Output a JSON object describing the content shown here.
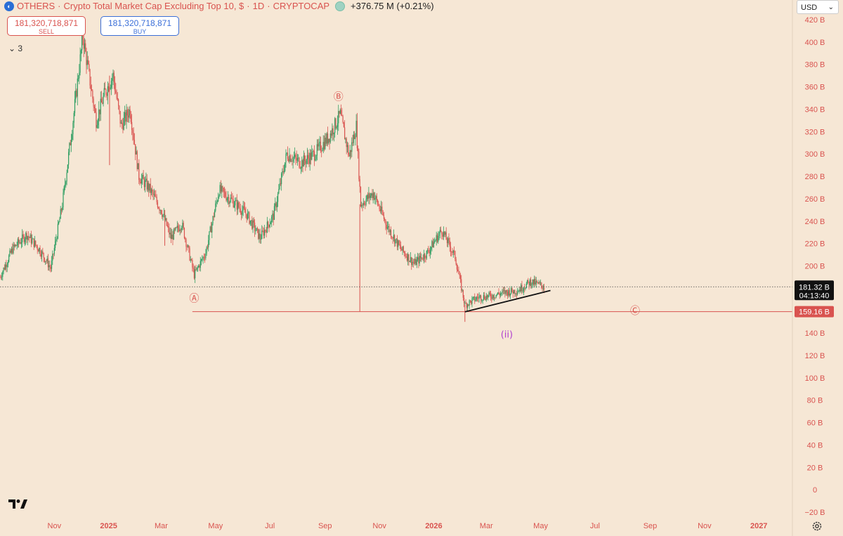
{
  "header": {
    "symbol": "OTHERS",
    "description": "Crypto Total Market Cap Excluding Top 10, $",
    "interval": "1D",
    "exchange": "CRYPTOCAP",
    "change": "+376.75 M (+0.21%)"
  },
  "trade": {
    "sell_price": "181,320,718,871",
    "sell_label": "SELL",
    "buy_price": "181,320,718,871",
    "buy_label": "BUY"
  },
  "indicators_count": "3",
  "currency": "USD",
  "colors": {
    "background": "#f6e7d5",
    "up": "#2e9e62",
    "down": "#d9534f",
    "accent": "#d9534f"
  },
  "chart_data": {
    "type": "candlestick",
    "y_axis": {
      "min": -20,
      "max": 420,
      "unit": "B",
      "ticks": [
        "420 B",
        "400 B",
        "380 B",
        "360 B",
        "340 B",
        "320 B",
        "300 B",
        "280 B",
        "260 B",
        "240 B",
        "220 B",
        "200 B",
        "180 B",
        "160 B",
        "140 B",
        "120 B",
        "100 B",
        "80 B",
        "60 B",
        "40 B",
        "20 B",
        "0",
        "−20 B"
      ],
      "tick_values": [
        420,
        400,
        380,
        360,
        340,
        320,
        300,
        280,
        260,
        240,
        220,
        200,
        180,
        160,
        140,
        120,
        100,
        80,
        60,
        40,
        20,
        0,
        -20
      ]
    },
    "x_axis": {
      "labels": [
        "Nov",
        "2025",
        "Mar",
        "May",
        "Jul",
        "Sep",
        "Nov",
        "2026",
        "Mar",
        "May",
        "Jul",
        "Sep",
        "Nov",
        "2027"
      ],
      "label_dates": [
        "2024-11-01",
        "2025-01-01",
        "2025-03-01",
        "2025-05-01",
        "2025-07-01",
        "2025-09-01",
        "2025-11-01",
        "2026-01-01",
        "2026-03-01",
        "2026-05-01",
        "2026-07-01",
        "2026-09-01",
        "2026-11-01",
        "2027-01-01"
      ],
      "bold_labels": [
        "2025",
        "2026",
        "2027"
      ]
    },
    "current_price": {
      "value": 181.32,
      "label": "181.32 B",
      "countdown": "04:13:40"
    },
    "horizontal_level": {
      "value": 159.16,
      "label": "159.16 B",
      "from": "2025-04-05",
      "to": "2027-03-01"
    },
    "series": [
      {
        "date": "2024-09-01",
        "value": 190
      },
      {
        "date": "2024-09-15",
        "value": 215
      },
      {
        "date": "2024-10-01",
        "value": 228
      },
      {
        "date": "2024-10-15",
        "value": 215
      },
      {
        "date": "2024-10-28",
        "value": 198
      },
      {
        "date": "2024-11-10",
        "value": 255
      },
      {
        "date": "2024-11-22",
        "value": 330
      },
      {
        "date": "2024-12-03",
        "value": 405
      },
      {
        "date": "2024-12-10",
        "value": 370
      },
      {
        "date": "2024-12-18",
        "value": 330
      },
      {
        "date": "2024-12-28",
        "value": 355
      },
      {
        "date": "2025-01-06",
        "value": 370
      },
      {
        "date": "2025-01-15",
        "value": 325
      },
      {
        "date": "2025-01-25",
        "value": 340
      },
      {
        "date": "2025-02-04",
        "value": 280
      },
      {
        "date": "2025-02-15",
        "value": 270
      },
      {
        "date": "2025-03-01",
        "value": 250
      },
      {
        "date": "2025-03-12",
        "value": 225
      },
      {
        "date": "2025-03-24",
        "value": 238
      },
      {
        "date": "2025-04-07",
        "value": 192
      },
      {
        "date": "2025-04-20",
        "value": 212
      },
      {
        "date": "2025-05-05",
        "value": 268
      },
      {
        "date": "2025-05-20",
        "value": 258
      },
      {
        "date": "2025-06-05",
        "value": 246
      },
      {
        "date": "2025-06-20",
        "value": 225
      },
      {
        "date": "2025-07-05",
        "value": 245
      },
      {
        "date": "2025-07-20",
        "value": 300
      },
      {
        "date": "2025-08-05",
        "value": 292
      },
      {
        "date": "2025-08-20",
        "value": 300
      },
      {
        "date": "2025-09-05",
        "value": 315
      },
      {
        "date": "2025-09-18",
        "value": 335
      },
      {
        "date": "2025-09-28",
        "value": 298
      },
      {
        "date": "2025-10-06",
        "value": 325
      },
      {
        "date": "2025-10-11",
        "value": 255
      },
      {
        "date": "2025-10-25",
        "value": 265
      },
      {
        "date": "2025-11-10",
        "value": 235
      },
      {
        "date": "2025-11-25",
        "value": 215
      },
      {
        "date": "2025-12-10",
        "value": 202
      },
      {
        "date": "2025-12-25",
        "value": 212
      },
      {
        "date": "2026-01-10",
        "value": 232
      },
      {
        "date": "2026-01-25",
        "value": 208
      },
      {
        "date": "2026-02-05",
        "value": 165
      },
      {
        "date": "2026-02-20",
        "value": 172
      },
      {
        "date": "2026-03-05",
        "value": 173
      },
      {
        "date": "2026-03-20",
        "value": 176
      },
      {
        "date": "2026-04-05",
        "value": 178
      },
      {
        "date": "2026-04-20",
        "value": 186
      },
      {
        "date": "2026-05-06",
        "value": 181
      }
    ],
    "spikes": [
      {
        "date": "2025-10-10",
        "low": 159
      },
      {
        "date": "2026-02-05",
        "low": 150
      },
      {
        "date": "2025-03-05",
        "low": 218
      },
      {
        "date": "2025-01-02",
        "low": 290
      }
    ],
    "trendline": {
      "from_date": "2026-02-05",
      "from_value": 159,
      "to_date": "2026-05-12",
      "to_value": 178
    },
    "annotations": [
      {
        "label": "Ⓐ",
        "date": "2025-04-07",
        "value": 168
      },
      {
        "label": "Ⓑ",
        "date": "2025-09-16",
        "value": 348
      },
      {
        "label": "Ⓒ",
        "date": "2026-08-15",
        "value": 157
      },
      {
        "label": "(ii)",
        "date": "2026-03-24",
        "value": 136
      }
    ]
  }
}
